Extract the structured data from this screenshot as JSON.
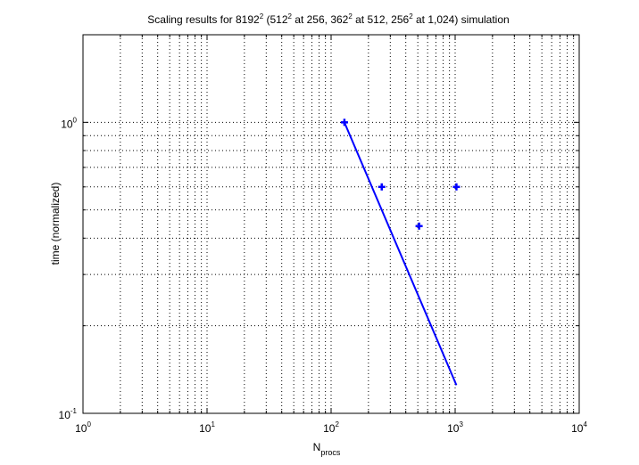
{
  "chart_data": {
    "type": "scatter",
    "title": {
      "p1": "Scaling results for 8192",
      "s1": "2",
      "p2": " (512",
      "s2": "2",
      "p3": " at 256, 362",
      "s3": "2",
      "p4": " at 512, 256",
      "s4": "2",
      "p5": " at 1,024) simulation"
    },
    "xlabel": {
      "base": "N",
      "sub": "procs"
    },
    "ylabel": "time (normalized)",
    "xscale": "log",
    "yscale": "log",
    "xlim": [
      1,
      10000
    ],
    "ylim": [
      0.1,
      2
    ],
    "grid": true,
    "x_ticks": [
      {
        "v": 1,
        "base": "10",
        "exp": "0"
      },
      {
        "v": 10,
        "base": "10",
        "exp": "1"
      },
      {
        "v": 100,
        "base": "10",
        "exp": "2"
      },
      {
        "v": 1000,
        "base": "10",
        "exp": "3"
      },
      {
        "v": 10000,
        "base": "10",
        "exp": "4"
      }
    ],
    "y_ticks": [
      {
        "v": 0.1,
        "base": "10",
        "exp": "-1"
      },
      {
        "v": 1,
        "base": "10",
        "exp": "0"
      }
    ],
    "series": [
      {
        "style": "markers",
        "marker": "plus",
        "color": "#0000ff",
        "x": [
          128,
          256,
          512,
          1024
        ],
        "y": [
          1.0,
          0.6,
          0.44,
          0.6
        ]
      },
      {
        "style": "line",
        "color": "#0000ff",
        "x": [
          128,
          1024
        ],
        "y": [
          1.0,
          0.125
        ]
      }
    ]
  }
}
